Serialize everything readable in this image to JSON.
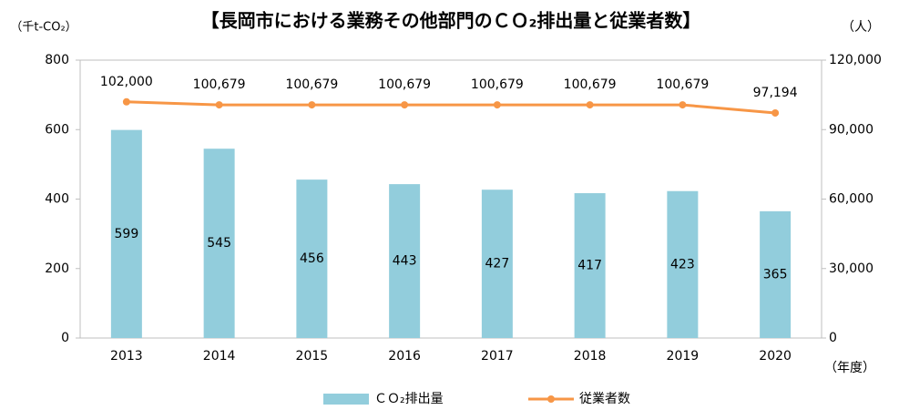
{
  "chart_data": {
    "type": "bar",
    "title": "【長岡市における業務その他部門のＣＯ₂排出量と従業者数】",
    "y_label": "（千t-CO₂）",
    "y2_label": "（人）",
    "x_label": "（年度）",
    "categories": [
      "2013",
      "2014",
      "2015",
      "2016",
      "2017",
      "2018",
      "2019",
      "2020"
    ],
    "series": [
      {
        "name": "ＣＯ₂排出量",
        "type": "bar",
        "color": "#92cddc",
        "values": [
          599,
          545,
          456,
          443,
          427,
          417,
          423,
          365
        ]
      },
      {
        "name": "従業者数",
        "type": "line",
        "axis": "y2",
        "color": "#f79646",
        "values": [
          102000,
          100679,
          100679,
          100679,
          100679,
          100679,
          100679,
          97194
        ],
        "value_labels": [
          "102,000",
          "100,679",
          "100,679",
          "100,679",
          "100,679",
          "100,679",
          "100,679",
          "97,194"
        ]
      }
    ],
    "ylim": [
      0,
      800
    ],
    "yticks": [
      0,
      200,
      400,
      600,
      800
    ],
    "y2lim": [
      0,
      120000
    ],
    "y2ticks": [
      0,
      {
        "value": 30000,
        "label": "30,000"
      },
      {
        "value": 60000,
        "label": "60,000"
      },
      {
        "value": 90000,
        "label": "90,000"
      },
      {
        "value": 120000,
        "label": "120,000"
      }
    ],
    "grid": false,
    "legend": "bottom"
  }
}
